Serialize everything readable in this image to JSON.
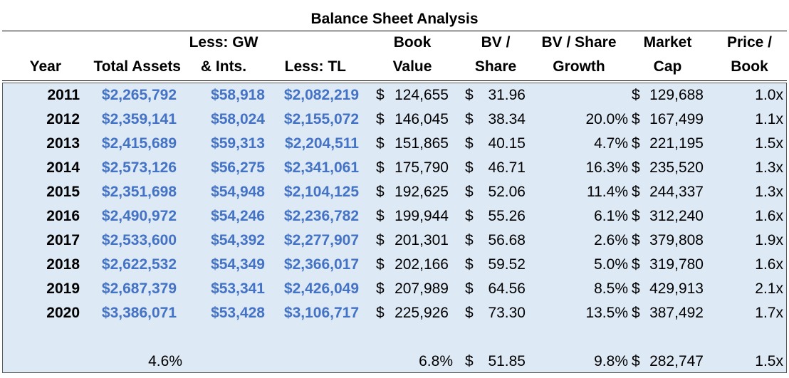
{
  "title": "Balance Sheet Analysis",
  "headers": [
    {
      "key": "year",
      "line1": "",
      "line2": "Year"
    },
    {
      "key": "total_assets",
      "line1": "",
      "line2": "Total Assets"
    },
    {
      "key": "gw",
      "line1": "Less: GW",
      "line2": "& Ints."
    },
    {
      "key": "tl",
      "line1": "",
      "line2": "Less: TL"
    },
    {
      "key": "bv",
      "line1": "Book",
      "line2": "Value"
    },
    {
      "key": "bvps",
      "line1": "BV /",
      "line2": "Share"
    },
    {
      "key": "growth",
      "line1": "BV / Share",
      "line2": "Growth"
    },
    {
      "key": "mcap",
      "line1": "Market",
      "line2": "Cap"
    },
    {
      "key": "pb",
      "line1": "Price /",
      "line2": "Book"
    }
  ],
  "rows": [
    {
      "year": "2011",
      "total_assets": "$2,265,792",
      "gw": "$58,918",
      "tl": "$2,082,219",
      "bv": "124,655",
      "bvps": "31.96",
      "growth": "",
      "mcap": "129,688",
      "pb": "1.0x"
    },
    {
      "year": "2012",
      "total_assets": "$2,359,141",
      "gw": "$58,024",
      "tl": "$2,155,072",
      "bv": "146,045",
      "bvps": "38.34",
      "growth": "20.0%",
      "mcap": "167,499",
      "pb": "1.1x"
    },
    {
      "year": "2013",
      "total_assets": "$2,415,689",
      "gw": "$59,313",
      "tl": "$2,204,511",
      "bv": "151,865",
      "bvps": "40.15",
      "growth": "4.7%",
      "mcap": "221,195",
      "pb": "1.5x"
    },
    {
      "year": "2014",
      "total_assets": "$2,573,126",
      "gw": "$56,275",
      "tl": "$2,341,061",
      "bv": "175,790",
      "bvps": "46.71",
      "growth": "16.3%",
      "mcap": "235,520",
      "pb": "1.3x"
    },
    {
      "year": "2015",
      "total_assets": "$2,351,698",
      "gw": "$54,948",
      "tl": "$2,104,125",
      "bv": "192,625",
      "bvps": "52.06",
      "growth": "11.4%",
      "mcap": "244,337",
      "pb": "1.3x"
    },
    {
      "year": "2016",
      "total_assets": "$2,490,972",
      "gw": "$54,246",
      "tl": "$2,236,782",
      "bv": "199,944",
      "bvps": "55.26",
      "growth": "6.1%",
      "mcap": "312,240",
      "pb": "1.6x"
    },
    {
      "year": "2017",
      "total_assets": "$2,533,600",
      "gw": "$54,392",
      "tl": "$2,277,907",
      "bv": "201,301",
      "bvps": "56.68",
      "growth": "2.6%",
      "mcap": "379,808",
      "pb": "1.9x"
    },
    {
      "year": "2018",
      "total_assets": "$2,622,532",
      "gw": "$54,349",
      "tl": "$2,366,017",
      "bv": "202,166",
      "bvps": "59.52",
      "growth": "5.0%",
      "mcap": "319,780",
      "pb": "1.6x"
    },
    {
      "year": "2019",
      "total_assets": "$2,687,379",
      "gw": "$53,341",
      "tl": "$2,426,049",
      "bv": "207,989",
      "bvps": "64.56",
      "growth": "8.5%",
      "mcap": "429,913",
      "pb": "2.1x"
    },
    {
      "year": "2020",
      "total_assets": "$3,386,071",
      "gw": "$53,428",
      "tl": "$3,106,717",
      "bv": "225,926",
      "bvps": "73.30",
      "growth": "13.5%",
      "mcap": "387,492",
      "pb": "1.7x"
    }
  ],
  "summary": {
    "total_assets": "4.6%",
    "bv": "6.8%",
    "bvps": "51.85",
    "growth": "9.8%",
    "mcap": "282,747",
    "pb": "1.5x"
  },
  "currency_symbol": "$"
}
